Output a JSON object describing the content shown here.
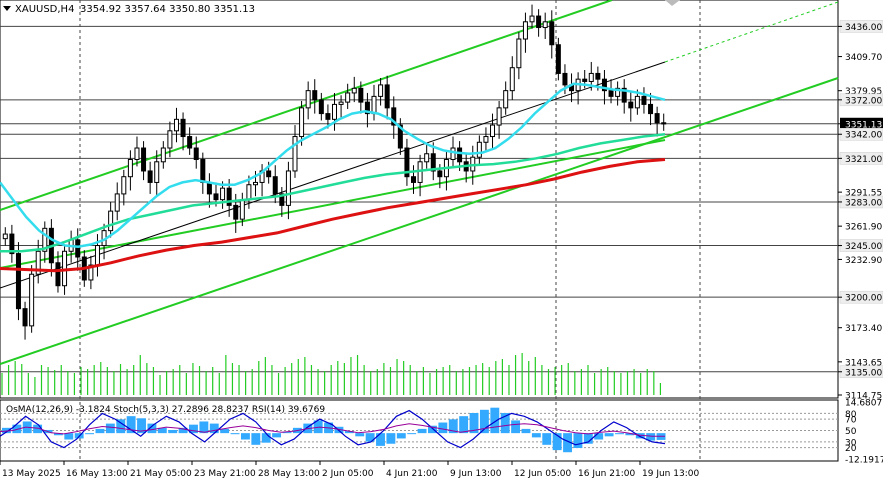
{
  "header": {
    "symbol": "XAUUSD,H4",
    "ohlc": "3354.92 3357.64 3350.80 3351.13"
  },
  "indicator_header": "OsMA(12,26,9) -3.1824  Stoch(5,3,3) 27.2896 28.8237  RSI(14) 39.6769",
  "colors": {
    "background": "#ffffff",
    "candle": "#000000",
    "channel": "#22cc22",
    "ema_fast": "#33ddee",
    "ema_mid": "#22dd99",
    "ema_slow": "#dd1111",
    "trend_thin": "#000000",
    "volume": "#22cc22",
    "osma": "#33aaff",
    "stoch_main": "#0000cc",
    "stoch_signal": "#000066",
    "rsi": "#990099",
    "hline": "#444444",
    "current_price_bg": "#000000"
  },
  "chart_data": {
    "type": "candlestick",
    "title": "XAUUSD,H4",
    "ylim": [
      3114.75,
      3459
    ],
    "y_ticks": [
      3436.0,
      3409.7,
      3379.95,
      3372.0,
      3351.13,
      3342.0,
      3321.0,
      3291.55,
      3283.0,
      3261.9,
      3245.0,
      3232.9,
      3200.0,
      3173.4,
      3143.65,
      3135.0,
      3114.75
    ],
    "y_tick_labels": [
      "3436.00",
      "3409.70",
      "3379.95",
      "3372.00",
      "3351.13",
      "3342.00",
      "3321.00",
      "3291.55",
      "3283.00",
      "3261.90",
      "3245.00",
      "3232.90",
      "3200.00",
      "3173.40",
      "3143.65",
      "3135.00",
      "3114.75"
    ],
    "highlighted_levels": [
      3436.0,
      3372.0,
      3351.13,
      3342.0,
      3321.0,
      3283.0,
      3245.0,
      3200.0,
      3135.0
    ],
    "x_tick_labels": [
      "13 May 2025",
      "16 May 13:00",
      "21 May 05:00",
      "23 May 21:00",
      "28 May 13:00",
      "2 Jun 05:00",
      "4 Jun 21:00",
      "9 Jun 13:00",
      "12 Jun 05:00",
      "16 Jun 21:00",
      "19 Jun 13:00"
    ],
    "current_price": 3351.13,
    "close_series": [
      3255,
      3238,
      3190,
      3175,
      3220,
      3240,
      3260,
      3230,
      3210,
      3240,
      3250,
      3235,
      3215,
      3228,
      3245,
      3258,
      3275,
      3290,
      3305,
      3320,
      3330,
      3310,
      3300,
      3318,
      3330,
      3345,
      3355,
      3340,
      3330,
      3320,
      3300,
      3290,
      3285,
      3295,
      3280,
      3268,
      3285,
      3298,
      3300,
      3310,
      3305,
      3290,
      3280,
      3310,
      3340,
      3365,
      3380,
      3372,
      3360,
      3355,
      3368,
      3370,
      3378,
      3382,
      3370,
      3360,
      3375,
      3385,
      3365,
      3350,
      3330,
      3305,
      3300,
      3318,
      3325,
      3310,
      3305,
      3320,
      3330,
      3318,
      3310,
      3322,
      3335,
      3340,
      3350,
      3365,
      3380,
      3400,
      3425,
      3440,
      3445,
      3435,
      3440,
      3420,
      3395,
      3385,
      3380,
      3390,
      3388,
      3395,
      3390,
      3380,
      3375,
      3382,
      3370,
      3365,
      3375,
      3368,
      3360,
      3352,
      3351
    ],
    "ema_fast": [
      3300,
      3285,
      3270,
      3258,
      3250,
      3245,
      3244,
      3246,
      3250,
      3258,
      3268,
      3278,
      3288,
      3296,
      3300,
      3302,
      3300,
      3298,
      3298,
      3302,
      3308,
      3318,
      3328,
      3336,
      3342,
      3348,
      3355,
      3360,
      3362,
      3360,
      3355,
      3345,
      3338,
      3332,
      3328,
      3326,
      3325,
      3326,
      3330,
      3338,
      3348,
      3360,
      3370,
      3380,
      3386,
      3385,
      3383,
      3381,
      3380,
      3378,
      3375,
      3372
    ],
    "ema_mid": [
      3240,
      3240,
      3242,
      3248,
      3255,
      3262,
      3268,
      3272,
      3276,
      3280,
      3282,
      3284,
      3286,
      3288,
      3292,
      3296,
      3300,
      3304,
      3307,
      3309,
      3311,
      3313,
      3315,
      3316,
      3318,
      3321,
      3325,
      3330,
      3334,
      3337,
      3340,
      3342
    ],
    "ema_slow": [
      3225,
      3224,
      3223,
      3225,
      3230,
      3236,
      3241,
      3245,
      3248,
      3252,
      3256,
      3262,
      3268,
      3273,
      3278,
      3282,
      3286,
      3290,
      3294,
      3298,
      3303,
      3309,
      3314,
      3318,
      3320
    ],
    "volume": [
      22,
      30,
      34,
      31,
      22,
      18,
      30,
      28,
      25,
      30,
      24,
      22,
      28,
      26,
      30,
      33,
      28,
      24,
      31,
      26,
      30,
      40,
      32,
      28,
      20,
      24,
      26,
      30,
      22,
      32,
      29,
      24,
      28,
      22,
      40,
      32,
      30,
      24,
      26,
      34,
      38,
      30,
      22,
      28,
      32,
      36,
      38,
      30,
      26,
      24,
      30,
      34,
      32,
      38,
      40,
      30,
      24,
      26,
      32,
      28,
      36,
      34,
      30,
      24,
      28,
      22,
      26,
      28,
      30,
      24,
      26,
      28,
      30,
      32,
      28,
      34,
      36,
      30,
      40,
      42,
      34,
      38,
      30,
      26,
      28,
      30,
      32,
      24,
      26,
      30,
      22,
      26,
      28,
      24,
      22,
      24,
      26,
      22,
      26,
      24,
      12
    ],
    "indicator": {
      "ylim": [
        -12.1917,
        14.6807
      ],
      "tick_labels": [
        "14.6807",
        "80",
        "70",
        "50",
        "30",
        "20",
        "-12.1917"
      ],
      "osma": [
        2.5,
        4.0,
        5.5,
        4.0,
        1.5,
        -1.0,
        -3.0,
        -2.5,
        -0.5,
        2.0,
        4.5,
        6.5,
        8.0,
        7.0,
        4.5,
        2.5,
        1.5,
        2.5,
        4.0,
        5.5,
        4.5,
        2.0,
        -0.5,
        -3.0,
        -5.5,
        -4.5,
        -2.0,
        0.5,
        2.5,
        4.5,
        6.0,
        5.0,
        3.0,
        1.0,
        -1.5,
        -4.0,
        -6.0,
        -5.0,
        -2.5,
        0.0,
        2.0,
        3.5,
        5.0,
        6.5,
        8.0,
        9.5,
        11.0,
        12.0,
        9.5,
        6.0,
        2.0,
        -2.0,
        -5.5,
        -8.0,
        -9.0,
        -7.0,
        -5.0,
        -3.0,
        -1.5,
        -0.5,
        -1.0,
        -2.5,
        -3.5,
        -3.2
      ],
      "stoch": [
        40,
        55,
        75,
        60,
        30,
        20,
        35,
        60,
        80,
        70,
        55,
        40,
        60,
        75,
        65,
        45,
        30,
        50,
        70,
        80,
        65,
        40,
        25,
        35,
        55,
        70,
        60,
        40,
        25,
        30,
        50,
        75,
        85,
        70,
        50,
        30,
        20,
        35,
        55,
        70,
        80,
        75,
        65,
        50,
        35,
        25,
        30,
        50,
        65,
        55,
        40,
        30,
        27
      ],
      "rsi": [
        48,
        50,
        56,
        54,
        46,
        44,
        48,
        53,
        57,
        55,
        52,
        49,
        52,
        56,
        54,
        50,
        47,
        51,
        55,
        58,
        55,
        50,
        47,
        49,
        53,
        56,
        54,
        50,
        46,
        48,
        52,
        58,
        62,
        59,
        55,
        51,
        47,
        50,
        54,
        57,
        60,
        62,
        60,
        55,
        50,
        46,
        44,
        47,
        49,
        46,
        42,
        40,
        40
      ]
    }
  }
}
